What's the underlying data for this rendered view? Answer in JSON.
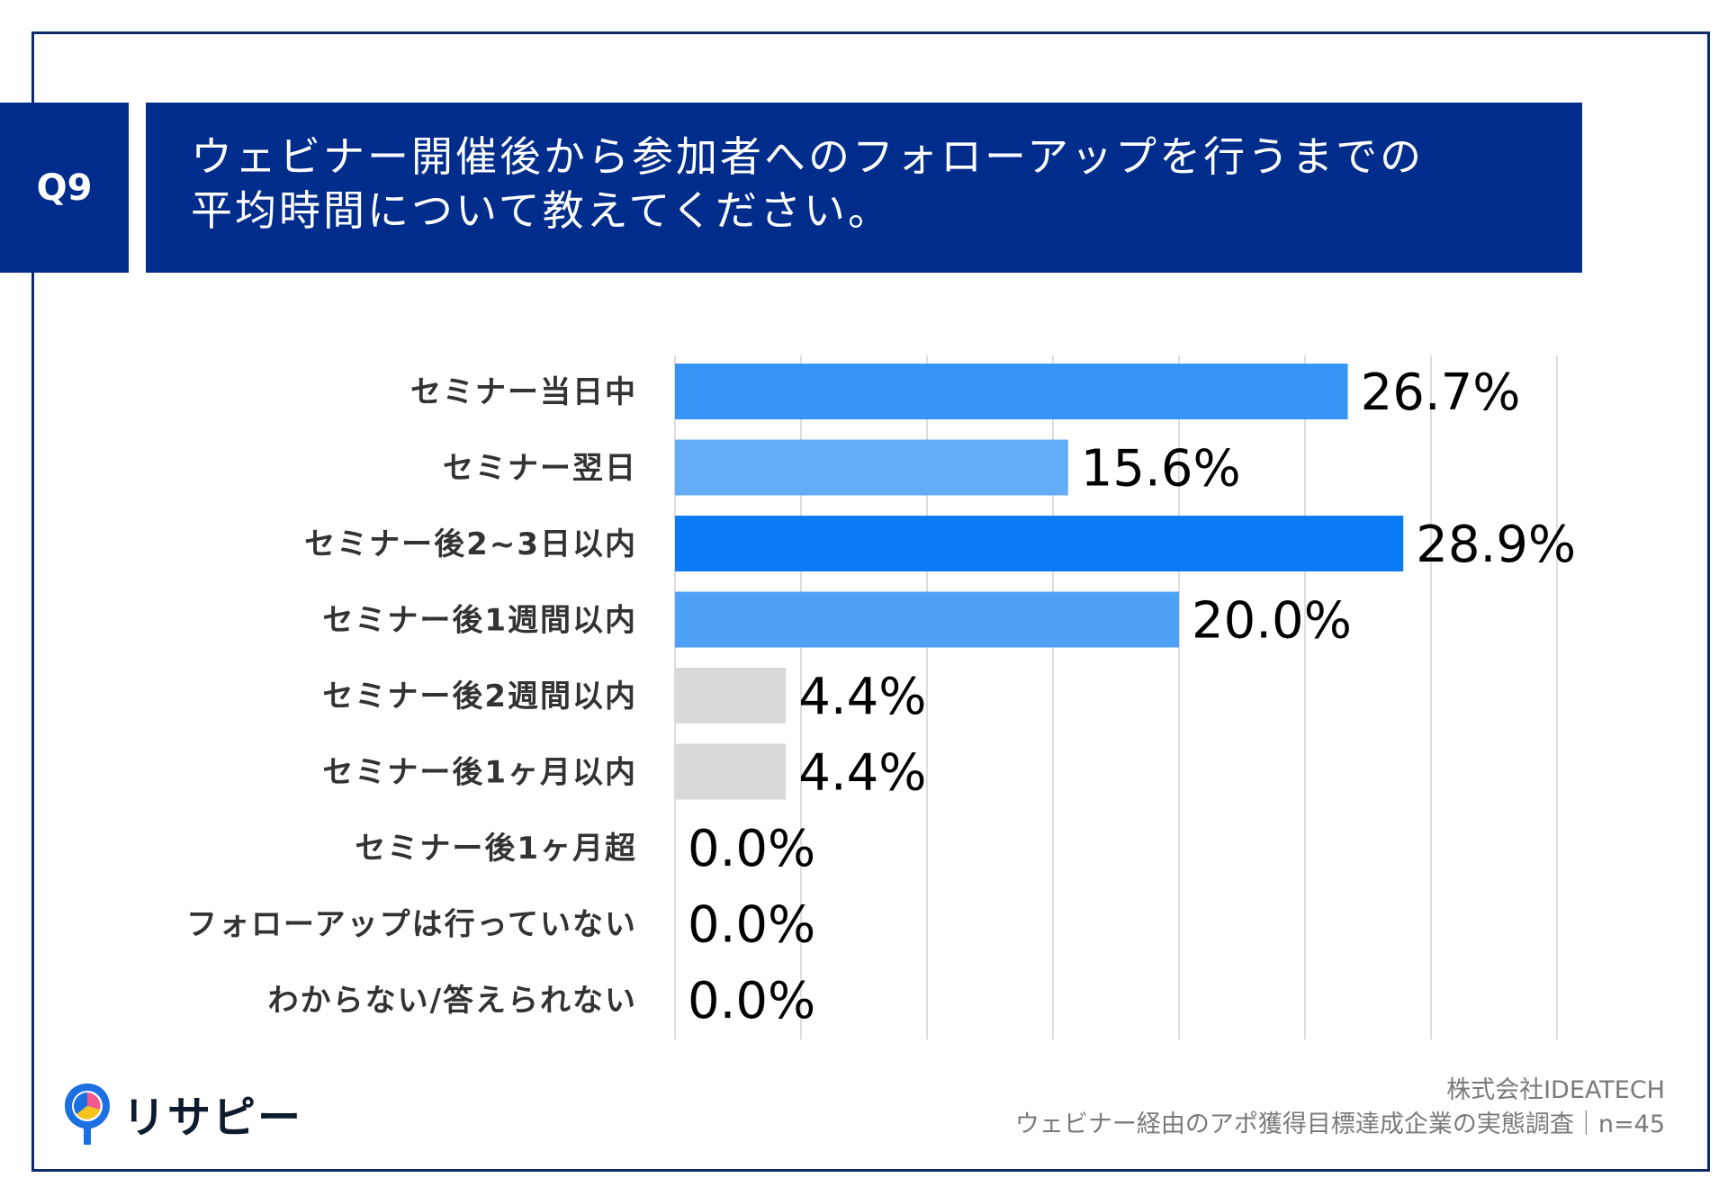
{
  "question": {
    "label": "Q9",
    "line1": "ウェビナー開催後から参加者へのフォローアップを行うまでの",
    "line2": "平均時間について教えてください。"
  },
  "chart_data": {
    "type": "bar",
    "orientation": "horizontal",
    "categories": [
      "セミナー当日中",
      "セミナー翌日",
      "セミナー後2~3日以内",
      "セミナー後1週間以内",
      "セミナー後2週間以内",
      "セミナー後1ヶ月以内",
      "セミナー後1ヶ月超",
      "フォローアップは行っていない",
      "わからない/答えられない"
    ],
    "values": [
      26.7,
      15.6,
      28.9,
      20.0,
      4.4,
      4.4,
      0.0,
      0.0,
      0.0
    ],
    "value_labels": [
      "26.7%",
      "15.6%",
      "28.9%",
      "20.0%",
      "4.4%",
      "4.4%",
      "0.0%",
      "0.0%",
      "0.0%"
    ],
    "bar_colors": [
      "#3796f5",
      "#65acf8",
      "#0a7af6",
      "#4ea1f6",
      "#d9d9d9",
      "#d9d9d9",
      "#d9d9d9",
      "#d9d9d9",
      "#d9d9d9"
    ],
    "xlim": [
      0,
      35
    ],
    "gridline_step": 5,
    "grid": true,
    "gridline_color": "#dddddd"
  },
  "logo": {
    "text": "リサピー",
    "colors": {
      "blue": "#1b6fe0",
      "pink": "#f05a8c",
      "yellow": "#f6c21c"
    }
  },
  "footer": {
    "company": "株式会社IDEATECH",
    "survey": "ウェビナー経由のアポ獲得目標達成企業の実態調査｜n=45"
  },
  "colors": {
    "frame": "#0d2a6b",
    "header_bg": "#002c8b"
  }
}
